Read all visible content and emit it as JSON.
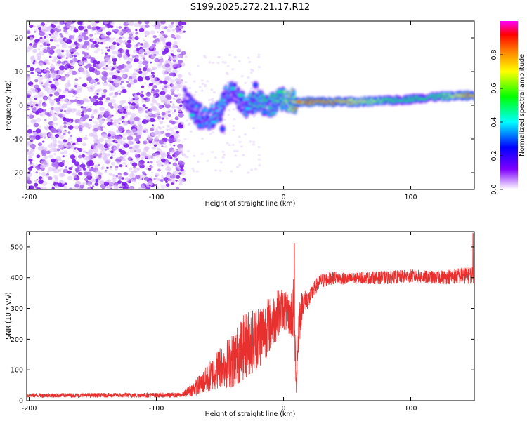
{
  "title": "S199.2025.272.21.17.R12",
  "chart_data": [
    {
      "type": "heatmap",
      "name": "spectrogram",
      "xlabel": "Height of straight line (km)",
      "ylabel": "Frequency (Hz)",
      "xlim": [
        -202,
        150
      ],
      "ylim": [
        -25,
        25
      ],
      "xticks": [
        -200,
        -100,
        0,
        100
      ],
      "xtick_labels": [
        "-200",
        "-100",
        "0",
        "100"
      ],
      "yticks": [
        -20,
        -10,
        0,
        10,
        20
      ],
      "ytick_labels": [
        "-20",
        "-10",
        "0",
        "10",
        "20"
      ],
      "noise_region_x": [
        -202,
        -78
      ],
      "signal_ridge": {
        "x": [
          -78,
          -70,
          -60,
          -50,
          -45,
          -40,
          -35,
          -30,
          -20,
          -10,
          0,
          10,
          30,
          60,
          90,
          120,
          150
        ],
        "freq_hz": [
          3,
          -2,
          -4,
          -2,
          3,
          4,
          2,
          0,
          1,
          0,
          2,
          1,
          1,
          1,
          1.5,
          2.5,
          3
        ],
        "amplitude": [
          0.3,
          0.4,
          0.4,
          0.45,
          0.4,
          0.35,
          0.35,
          0.4,
          0.5,
          0.55,
          0.6,
          0.85,
          0.9,
          0.75,
          0.55,
          0.55,
          0.9
        ]
      },
      "colorbar": {
        "label": "Normalized spectral amplitude",
        "range": [
          0,
          1
        ],
        "ticks": [
          0.0,
          0.2,
          0.4,
          0.6,
          0.8
        ],
        "tick_labels": [
          "0.0",
          "0.2",
          "0.4",
          "0.6",
          "0.8"
        ],
        "colors": [
          "#ffffff",
          "#8000ff",
          "#0000ff",
          "#00ffff",
          "#00ff00",
          "#ffff00",
          "#ff8000",
          "#ff0000",
          "#ff00ff"
        ]
      }
    },
    {
      "type": "line",
      "name": "snr",
      "xlabel": "Height of straight line (km)",
      "ylabel": "SNR (10 * v/v)",
      "xlim": [
        -202,
        150
      ],
      "ylim": [
        0,
        550
      ],
      "xticks": [
        -200,
        -100,
        0,
        100
      ],
      "xtick_labels": [
        "-200",
        "-100",
        "0",
        "100"
      ],
      "yticks": [
        0,
        100,
        200,
        300,
        400,
        500
      ],
      "ytick_labels": [
        "0",
        "100",
        "200",
        "300",
        "400",
        "500"
      ],
      "color": "#e8302f",
      "envelope": {
        "x": [
          -202,
          -80,
          -70,
          -60,
          -50,
          -40,
          -30,
          -20,
          -10,
          -5,
          0,
          5,
          8,
          10,
          12,
          15,
          20,
          25,
          30,
          40,
          50,
          60,
          80,
          100,
          120,
          150
        ],
        "mean": [
          17,
          18,
          40,
          70,
          110,
          130,
          180,
          210,
          250,
          280,
          300,
          270,
          300,
          60,
          250,
          320,
          330,
          370,
          390,
          400,
          395,
          400,
          400,
          405,
          400,
          410
        ],
        "spread": [
          7,
          8,
          25,
          45,
          70,
          90,
          110,
          110,
          90,
          80,
          70,
          60,
          120,
          40,
          90,
          40,
          30,
          25,
          25,
          20,
          20,
          20,
          22,
          22,
          22,
          30
        ]
      },
      "spikes": [
        {
          "x": 8.5,
          "y": 510
        },
        {
          "x": 149,
          "y": 545
        }
      ]
    }
  ]
}
